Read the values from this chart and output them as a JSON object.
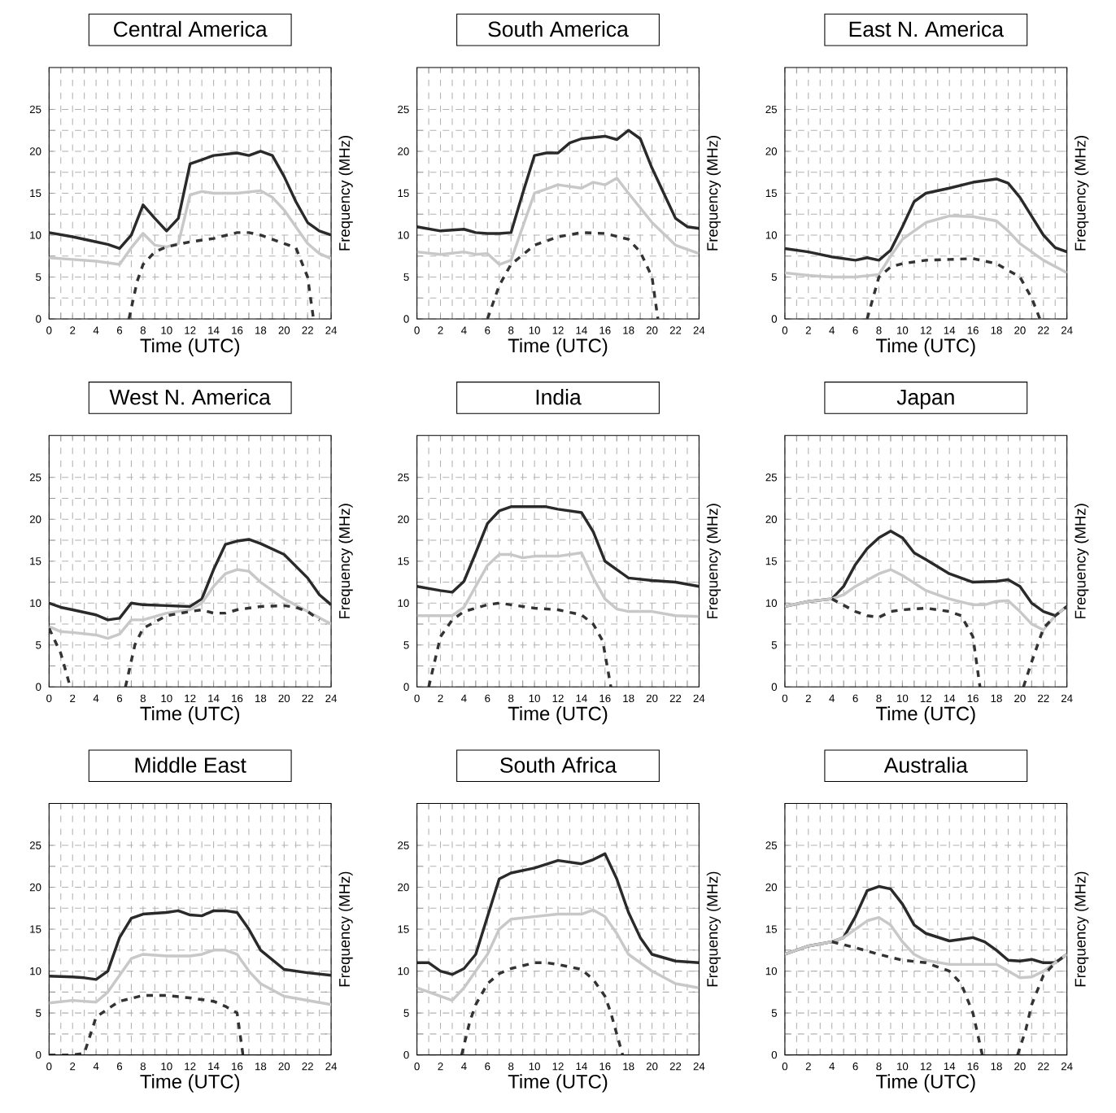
{
  "chart_data": [
    {
      "type": "line",
      "title": "Central America",
      "xlabel": "Time (UTC)",
      "ylabel": "Frequency (MHz)",
      "xlim": [
        0,
        24
      ],
      "ylim": [
        0,
        30
      ],
      "xticks": [
        0,
        2,
        4,
        6,
        8,
        10,
        12,
        14,
        16,
        18,
        20,
        22,
        24
      ],
      "yticks": [
        0,
        5,
        10,
        15,
        20,
        25
      ],
      "grid": true,
      "series": [
        {
          "color": "#2a2a2a",
          "line_style": "solid",
          "x": [
            0,
            2,
            4,
            5,
            6,
            7,
            8,
            9,
            10,
            11,
            12,
            13,
            14,
            16,
            17,
            18,
            19,
            20,
            21,
            22,
            23,
            24
          ],
          "values": [
            10.3,
            9.8,
            9.2,
            8.9,
            8.4,
            10,
            13.6,
            12,
            10.5,
            12,
            18.5,
            19,
            19.5,
            19.8,
            19.5,
            20,
            19.5,
            17,
            14,
            11.5,
            10.5,
            10
          ]
        },
        {
          "color": "#c8c8c8",
          "line_style": "solid",
          "x": [
            0,
            2,
            4,
            6,
            7,
            8,
            9,
            10,
            11,
            12,
            13,
            14,
            16,
            18,
            19,
            20,
            21,
            22,
            23,
            24
          ],
          "values": [
            7.3,
            7.1,
            6.9,
            6.5,
            8.5,
            10.2,
            8.8,
            8.6,
            9,
            14.8,
            15.2,
            15,
            15,
            15.3,
            14.5,
            13,
            11,
            9,
            7.8,
            7.2
          ]
        },
        {
          "color": "#333333",
          "line_style": "dashed",
          "x": [
            6.8,
            7.5,
            8,
            9,
            10,
            12,
            14,
            16,
            17,
            18,
            20,
            21,
            22,
            22.5
          ],
          "values": [
            0,
            4.5,
            6.5,
            8,
            8.6,
            9.2,
            9.6,
            10.3,
            10.3,
            10,
            9,
            8.5,
            5,
            0
          ]
        }
      ]
    },
    {
      "type": "line",
      "title": "South America",
      "xlabel": "Time (UTC)",
      "ylabel": "Frequency (MHz)",
      "xlim": [
        0,
        24
      ],
      "ylim": [
        0,
        30
      ],
      "xticks": [
        0,
        2,
        4,
        6,
        8,
        10,
        12,
        14,
        16,
        18,
        20,
        22,
        24
      ],
      "yticks": [
        0,
        5,
        10,
        15,
        20,
        25
      ],
      "grid": true,
      "series": [
        {
          "color": "#2a2a2a",
          "line_style": "solid",
          "x": [
            0,
            2,
            4,
            5,
            6,
            7,
            8,
            9,
            10,
            11,
            12,
            13,
            14,
            16,
            17,
            18,
            19,
            20,
            21,
            22,
            23,
            24
          ],
          "values": [
            11,
            10.5,
            10.7,
            10.3,
            10.2,
            10.2,
            10.3,
            15,
            19.5,
            19.8,
            19.8,
            21,
            21.5,
            21.8,
            21.4,
            22.5,
            21.5,
            18,
            15,
            12,
            11,
            10.8
          ]
        },
        {
          "color": "#c8c8c8",
          "line_style": "solid",
          "x": [
            0,
            2,
            4,
            5,
            6,
            7,
            8,
            9,
            10,
            11,
            12,
            14,
            15,
            16,
            17,
            18,
            20,
            22,
            24
          ],
          "values": [
            8,
            7.7,
            8,
            7.7,
            7.8,
            6.5,
            7,
            11,
            15,
            15.5,
            16,
            15.6,
            16.3,
            16,
            16.8,
            15,
            11.5,
            8.8,
            7.8
          ]
        },
        {
          "color": "#333333",
          "line_style": "dashed",
          "x": [
            6,
            7,
            8,
            10,
            12,
            14,
            16,
            18,
            19,
            20,
            20.5
          ],
          "values": [
            0,
            4,
            6.5,
            8.8,
            9.8,
            10.3,
            10.2,
            9.5,
            8,
            5,
            0
          ]
        }
      ]
    },
    {
      "type": "line",
      "title": "East N. America",
      "xlabel": "Time (UTC)",
      "ylabel": "Frequency (MHz)",
      "xlim": [
        0,
        24
      ],
      "ylim": [
        0,
        30
      ],
      "xticks": [
        0,
        2,
        4,
        6,
        8,
        10,
        12,
        14,
        16,
        18,
        20,
        22,
        24
      ],
      "yticks": [
        0,
        5,
        10,
        15,
        20,
        25
      ],
      "grid": true,
      "series": [
        {
          "color": "#2a2a2a",
          "line_style": "solid",
          "x": [
            0,
            2,
            4,
            6,
            7,
            8,
            9,
            10,
            11,
            12,
            14,
            16,
            18,
            19,
            20,
            22,
            23,
            24
          ],
          "values": [
            8.4,
            8,
            7.4,
            7,
            7.3,
            7,
            8.2,
            11,
            14,
            15,
            15.6,
            16.3,
            16.7,
            16.2,
            14.5,
            10,
            8.5,
            8
          ]
        },
        {
          "color": "#c8c8c8",
          "line_style": "solid",
          "x": [
            0,
            2,
            4,
            6,
            8,
            9,
            10,
            12,
            14,
            16,
            18,
            19,
            20,
            22,
            24
          ],
          "values": [
            5.5,
            5.2,
            5,
            5,
            5.3,
            7.5,
            9.5,
            11.5,
            12.3,
            12.2,
            11.7,
            10.5,
            9,
            7,
            5.5
          ]
        },
        {
          "color": "#333333",
          "line_style": "dashed",
          "x": [
            7,
            8,
            9,
            10,
            12,
            14,
            16,
            18,
            20,
            21,
            21.7
          ],
          "values": [
            0,
            5,
            6.2,
            6.6,
            7,
            7.1,
            7.2,
            6.6,
            5,
            2.5,
            0
          ]
        }
      ]
    },
    {
      "type": "line",
      "title": "West N. America",
      "xlabel": "Time (UTC)",
      "ylabel": "Frequency (MHz)",
      "xlim": [
        0,
        24
      ],
      "ylim": [
        0,
        30
      ],
      "xticks": [
        0,
        2,
        4,
        6,
        8,
        10,
        12,
        14,
        16,
        18,
        20,
        22,
        24
      ],
      "yticks": [
        0,
        5,
        10,
        15,
        20,
        25
      ],
      "grid": true,
      "series": [
        {
          "color": "#2a2a2a",
          "line_style": "solid",
          "x": [
            0,
            1,
            2,
            4,
            5,
            6,
            7,
            8,
            10,
            12,
            13,
            14,
            15,
            16,
            17,
            18,
            20,
            22,
            23,
            24
          ],
          "values": [
            10,
            9.5,
            9.2,
            8.6,
            8,
            8.2,
            10,
            9.8,
            9.7,
            9.6,
            10.5,
            14,
            17,
            17.4,
            17.6,
            17.1,
            15.8,
            13,
            11,
            9.8
          ]
        },
        {
          "color": "#c8c8c8",
          "line_style": "solid",
          "x": [
            0,
            1,
            2,
            4,
            5,
            6,
            7,
            8,
            10,
            12,
            13,
            14,
            15,
            16,
            17,
            18,
            20,
            22,
            24
          ],
          "values": [
            7.2,
            6.6,
            6.5,
            6.2,
            5.8,
            6.3,
            8,
            8,
            8.8,
            9.2,
            10,
            12,
            13.5,
            14,
            13.8,
            12.5,
            10.5,
            9,
            7.5
          ]
        },
        {
          "color": "#333333",
          "line_style": "dashed",
          "x": [
            0,
            1,
            1.8,
            4,
            6.5,
            7.3,
            8,
            10,
            12,
            13,
            14,
            15,
            16,
            18,
            20,
            21,
            22,
            23
          ],
          "values": [
            7,
            4,
            0,
            null,
            0,
            5,
            7,
            8.5,
            9,
            9.2,
            8.8,
            8.8,
            9.2,
            9.6,
            9.7,
            9.5,
            9,
            8
          ]
        }
      ]
    },
    {
      "type": "line",
      "title": "India",
      "xlabel": "Time (UTC)",
      "ylabel": "Frequency (MHz)",
      "xlim": [
        0,
        24
      ],
      "ylim": [
        0,
        30
      ],
      "xticks": [
        0,
        2,
        4,
        6,
        8,
        10,
        12,
        14,
        16,
        18,
        20,
        22,
        24
      ],
      "yticks": [
        0,
        5,
        10,
        15,
        20,
        25
      ],
      "grid": true,
      "series": [
        {
          "color": "#2a2a2a",
          "line_style": "solid",
          "x": [
            0,
            2,
            3,
            4,
            5,
            6,
            7,
            8,
            10,
            11,
            12,
            14,
            15,
            16,
            17,
            18,
            20,
            22,
            24
          ],
          "values": [
            12,
            11.5,
            11.3,
            12.6,
            16,
            19.5,
            21,
            21.5,
            21.5,
            21.5,
            21.2,
            20.8,
            18.5,
            15,
            14,
            13,
            12.7,
            12.5,
            12
          ]
        },
        {
          "color": "#c8c8c8",
          "line_style": "solid",
          "x": [
            0,
            2,
            3,
            4,
            5,
            6,
            7,
            8,
            9,
            10,
            12,
            14,
            15,
            16,
            17,
            18,
            20,
            22,
            24
          ],
          "values": [
            8.5,
            8.5,
            8.5,
            9.5,
            12,
            14.5,
            15.8,
            15.8,
            15.4,
            15.6,
            15.6,
            16,
            13,
            10.5,
            9.3,
            9,
            9,
            8.5,
            8.4
          ]
        },
        {
          "color": "#333333",
          "line_style": "dashed",
          "x": [
            1,
            2,
            3,
            4,
            6,
            7,
            8,
            10,
            12,
            14,
            15,
            15.8,
            16.5
          ],
          "values": [
            0,
            6,
            8,
            9,
            9.8,
            10,
            9.8,
            9.4,
            9.2,
            8.6,
            7.5,
            5.5,
            0
          ]
        }
      ]
    },
    {
      "type": "line",
      "title": "Japan",
      "xlabel": "Time (UTC)",
      "ylabel": "Frequency (MHz)",
      "xlim": [
        0,
        24
      ],
      "ylim": [
        0,
        30
      ],
      "xticks": [
        0,
        2,
        4,
        6,
        8,
        10,
        12,
        14,
        16,
        18,
        20,
        22,
        24
      ],
      "yticks": [
        0,
        5,
        10,
        15,
        20,
        25
      ],
      "grid": true,
      "series": [
        {
          "color": "#2a2a2a",
          "line_style": "solid",
          "x": [
            0,
            2,
            4,
            5,
            6,
            7,
            8,
            9,
            10,
            11,
            12,
            14,
            16,
            18,
            19,
            20,
            21,
            22,
            23,
            24
          ],
          "values": [
            9.6,
            10.2,
            10.5,
            12,
            14.6,
            16.5,
            17.8,
            18.6,
            17.8,
            16,
            15.2,
            13.5,
            12.5,
            12.6,
            12.8,
            12,
            10,
            9,
            8.5,
            9.6
          ]
        },
        {
          "color": "#c8c8c8",
          "line_style": "solid",
          "x": [
            0,
            2,
            4,
            5,
            6,
            8,
            9,
            10,
            12,
            14,
            16,
            17,
            18,
            19,
            20,
            21,
            22,
            23,
            24
          ],
          "values": [
            9.6,
            10.2,
            10.5,
            11,
            12,
            13.5,
            14,
            13.3,
            11.5,
            10.5,
            9.8,
            9.8,
            10.2,
            10.3,
            9,
            7.5,
            6.8,
            8.5,
            9.6
          ]
        },
        {
          "color": "#333333",
          "line_style": "dashed",
          "x": [
            4,
            6,
            7,
            8,
            9,
            10,
            12,
            14,
            15,
            16,
            16.6,
            18,
            20.3,
            21,
            22,
            23,
            24
          ],
          "values": [
            10.5,
            9,
            8.5,
            8.3,
            9,
            9.2,
            9.4,
            9,
            8.5,
            6,
            0,
            null,
            0,
            3,
            7,
            8.5,
            9.6
          ]
        }
      ]
    },
    {
      "type": "line",
      "title": "Middle East",
      "xlabel": "Time (UTC)",
      "ylabel": "Frequency (MHz)",
      "xlim": [
        0,
        24
      ],
      "ylim": [
        0,
        30
      ],
      "xticks": [
        0,
        2,
        4,
        6,
        8,
        10,
        12,
        14,
        16,
        18,
        20,
        22,
        24
      ],
      "yticks": [
        0,
        5,
        10,
        15,
        20,
        25
      ],
      "grid": true,
      "series": [
        {
          "color": "#2a2a2a",
          "line_style": "solid",
          "x": [
            0,
            2,
            3,
            4,
            5,
            6,
            7,
            8,
            10,
            11,
            12,
            13,
            14,
            15,
            16,
            17,
            18,
            20,
            22,
            24
          ],
          "values": [
            9.4,
            9.3,
            9.2,
            9,
            10,
            14,
            16.3,
            16.8,
            17,
            17.2,
            16.7,
            16.6,
            17.2,
            17.2,
            17,
            15,
            12.5,
            10.2,
            9.8,
            9.5
          ]
        },
        {
          "color": "#c8c8c8",
          "line_style": "solid",
          "x": [
            0,
            2,
            4,
            5,
            6,
            7,
            8,
            10,
            12,
            13,
            14,
            15,
            16,
            17,
            18,
            20,
            22,
            24
          ],
          "values": [
            6.2,
            6.5,
            6.3,
            7.5,
            9.5,
            11.5,
            12,
            11.8,
            11.8,
            12,
            12.5,
            12.5,
            12,
            10,
            8.5,
            7,
            6.5,
            6
          ]
        },
        {
          "color": "#333333",
          "line_style": "dashed",
          "x": [
            0,
            2,
            3,
            4,
            5,
            6,
            8,
            10,
            12,
            14,
            15,
            16,
            16.5
          ],
          "values": [
            0,
            0,
            0.2,
            4.5,
            5.5,
            6.4,
            7.1,
            7.1,
            6.8,
            6.4,
            5.8,
            5,
            0
          ]
        }
      ]
    },
    {
      "type": "line",
      "title": "South Africa",
      "xlabel": "Time (UTC)",
      "ylabel": "Frequency (MHz)",
      "xlim": [
        0,
        24
      ],
      "ylim": [
        0,
        30
      ],
      "xticks": [
        0,
        2,
        4,
        6,
        8,
        10,
        12,
        14,
        16,
        18,
        20,
        22,
        24
      ],
      "yticks": [
        0,
        5,
        10,
        15,
        20,
        25
      ],
      "grid": true,
      "series": [
        {
          "color": "#2a2a2a",
          "line_style": "solid",
          "x": [
            0,
            1,
            2,
            3,
            4,
            5,
            6,
            7,
            8,
            10,
            12,
            14,
            15,
            16,
            17,
            18,
            19,
            20,
            22,
            24
          ],
          "values": [
            11,
            11,
            10,
            9.6,
            10.3,
            12,
            16.5,
            21,
            21.7,
            22.3,
            23.2,
            22.8,
            23.3,
            24,
            21,
            17,
            14,
            12,
            11.2,
            11
          ]
        },
        {
          "color": "#c8c8c8",
          "line_style": "solid",
          "x": [
            0,
            2,
            3,
            4,
            5,
            6,
            7,
            8,
            10,
            12,
            14,
            15,
            16,
            17,
            18,
            20,
            22,
            24
          ],
          "values": [
            8,
            7,
            6.5,
            8,
            10,
            12,
            15,
            16.2,
            16.5,
            16.8,
            16.8,
            17.3,
            16.5,
            14.5,
            12,
            10,
            8.5,
            8
          ]
        },
        {
          "color": "#333333",
          "line_style": "dashed",
          "x": [
            3.8,
            4.5,
            5,
            6,
            7,
            8,
            10,
            11,
            12,
            14,
            15,
            16,
            16.5,
            17.5
          ],
          "values": [
            0,
            4,
            6,
            8.5,
            9.7,
            10.3,
            11,
            11,
            10.8,
            10.2,
            9,
            7,
            5,
            0
          ]
        }
      ]
    },
    {
      "type": "line",
      "title": "Australia",
      "xlabel": "Time (UTC)",
      "ylabel": "Frequency (MHz)",
      "xlim": [
        0,
        24
      ],
      "ylim": [
        0,
        30
      ],
      "xticks": [
        0,
        2,
        4,
        6,
        8,
        10,
        12,
        14,
        16,
        18,
        20,
        22,
        24
      ],
      "yticks": [
        0,
        5,
        10,
        15,
        20,
        25
      ],
      "grid": true,
      "series": [
        {
          "color": "#2a2a2a",
          "line_style": "solid",
          "x": [
            0,
            2,
            4,
            5,
            6,
            7,
            8,
            9,
            10,
            11,
            12,
            14,
            15,
            16,
            17,
            18,
            19,
            20,
            21,
            22,
            23,
            24
          ],
          "values": [
            12,
            13,
            13.5,
            14,
            16.5,
            19.6,
            20.1,
            19.8,
            18,
            15.5,
            14.5,
            13.6,
            13.8,
            14,
            13.5,
            12.5,
            11.3,
            11.2,
            11.4,
            11,
            11,
            12
          ]
        },
        {
          "color": "#c8c8c8",
          "line_style": "solid",
          "x": [
            0,
            2,
            4,
            5,
            6,
            7,
            8,
            9,
            10,
            11,
            12,
            14,
            16,
            18,
            19,
            20,
            21,
            22,
            23,
            24
          ],
          "values": [
            12,
            13,
            13.5,
            14,
            15,
            16,
            16.4,
            15.5,
            13.5,
            12,
            11.3,
            10.8,
            10.8,
            10.8,
            10,
            9.2,
            9.3,
            10,
            11,
            12
          ]
        },
        {
          "color": "#333333",
          "line_style": "dashed",
          "x": [
            4,
            6,
            8,
            10,
            12,
            14,
            15,
            16,
            16.8,
            18,
            19.8,
            20.5,
            21,
            22,
            23,
            24
          ],
          "values": [
            13.5,
            12.8,
            12,
            11.3,
            11,
            10,
            8.5,
            5,
            0,
            null,
            0,
            3,
            6,
            9.5,
            11,
            12
          ]
        }
      ]
    }
  ]
}
